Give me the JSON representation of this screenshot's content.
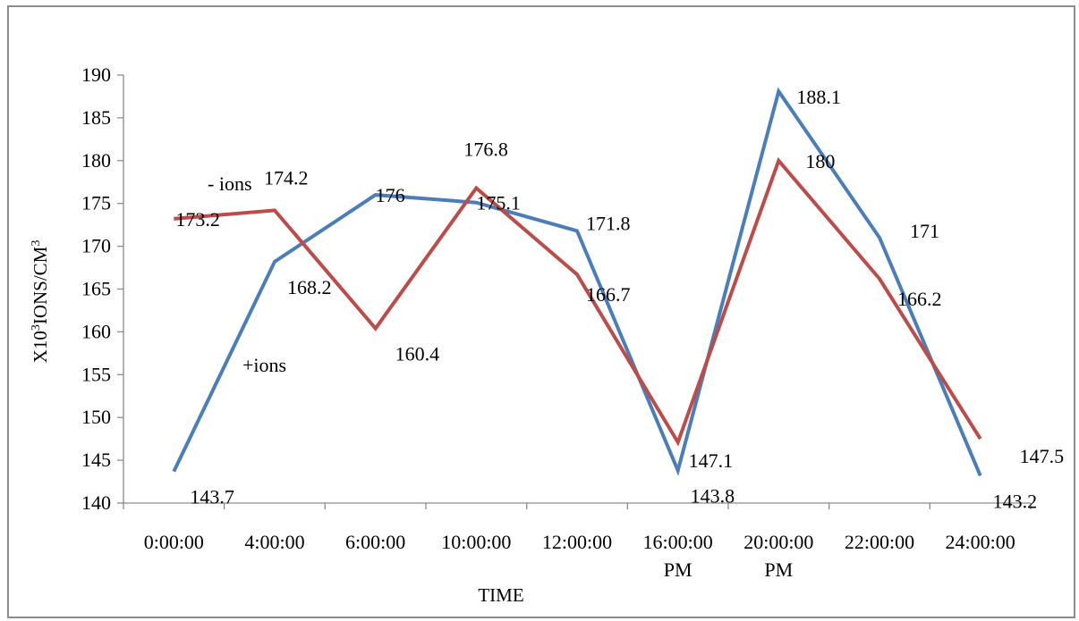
{
  "chart_data": {
    "type": "line",
    "xlabel": "TIME",
    "ylabel_main": "X10",
    "ylabel_sup1": "3",
    "ylabel_mid": "IONS/CM",
    "ylabel_sup2": "3",
    "ylim": [
      140,
      190
    ],
    "yticks": [
      140,
      145,
      150,
      155,
      160,
      165,
      170,
      175,
      180,
      185,
      190
    ],
    "categories": [
      [
        "0:00:00"
      ],
      [
        "4:00:00"
      ],
      [
        "6:00:00"
      ],
      [
        "10:00:00"
      ],
      [
        "12:00:00"
      ],
      [
        "16:00:00",
        "PM"
      ],
      [
        "20:00:00",
        "PM"
      ],
      [
        "22:00:00"
      ],
      [
        "24:00:00"
      ]
    ],
    "series": [
      {
        "name": "+ions",
        "color": "#4a7ebb",
        "values": [
          143.7,
          168.2,
          176,
          175.1,
          171.8,
          143.8,
          188.1,
          171,
          143.2
        ],
        "labels": [
          "143.7",
          "168.2",
          "176",
          "175.1",
          "171.8",
          "143.8",
          "188.1",
          "171",
          "143.2"
        ]
      },
      {
        "name": "- ions",
        "color": "#be4b48",
        "values": [
          173.2,
          174.2,
          160.4,
          176.8,
          166.7,
          147.1,
          180,
          166.2,
          147.5
        ],
        "labels": [
          "173.2",
          "174.2",
          "160.4",
          "176.8",
          "166.7",
          "147.1",
          "180",
          "166.2",
          "147.5"
        ]
      }
    ],
    "grid": false,
    "legend": "none"
  }
}
